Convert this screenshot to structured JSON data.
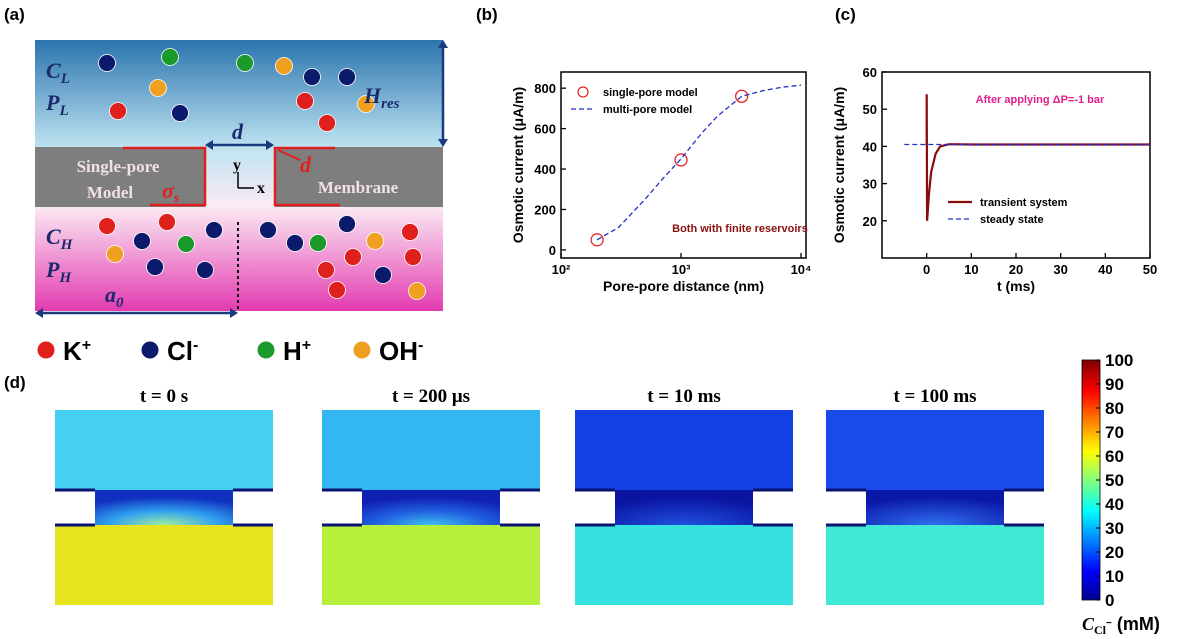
{
  "panel_labels": [
    "(a)",
    "(b)",
    "(c)",
    "(d)"
  ],
  "diagram": {
    "CL": [
      "C",
      "L"
    ],
    "PL": [
      "P",
      "L"
    ],
    "Hres": [
      "H",
      "res"
    ],
    "d_top": "d",
    "d_side": "d",
    "single_pore": [
      "Single-pore",
      "Model"
    ],
    "sigma": [
      "σ",
      "s"
    ],
    "axis_y": "y",
    "axis_x": "x",
    "membrane": "Membrane",
    "CH": [
      "C",
      "H"
    ],
    "PH": [
      "P",
      "H"
    ],
    "a0": [
      "a",
      "0"
    ],
    "ions": [
      [
        "K",
        "+"
      ],
      [
        "Cl",
        "-"
      ],
      [
        "H",
        "+"
      ],
      [
        "OH",
        "-"
      ]
    ]
  },
  "chart_data": [
    {
      "type": "line",
      "xscale": "log",
      "xlabel": "Pore-pore distance (nm)",
      "ylabel": "Osmotic current (μA/m)",
      "xlim": [
        100,
        11000
      ],
      "xticks": [
        {
          "value": 100,
          "label": "10²"
        },
        {
          "value": 1000,
          "label": "10³"
        },
        {
          "value": 10000,
          "label": "10⁴"
        }
      ],
      "ylim": [
        -40,
        880
      ],
      "yticks": [
        0,
        200,
        400,
        600,
        800
      ],
      "legend": "upper left",
      "annotation": "Both with finite reservoirs",
      "series": [
        {
          "name": "single-pore model",
          "color": "#e02828",
          "marker": "open-circle",
          "x": [
            200,
            1000,
            3200
          ],
          "values": [
            50,
            445,
            760
          ]
        },
        {
          "name": "multi-pore model",
          "color": "#2030c8",
          "dash": true,
          "x": [
            200,
            300,
            500,
            700,
            1000,
            1500,
            2000,
            3200,
            5000,
            7000,
            10000
          ],
          "values": [
            50,
            110,
            250,
            350,
            450,
            580,
            660,
            760,
            790,
            805,
            815
          ]
        }
      ]
    },
    {
      "type": "line",
      "xlabel": "t (ms)",
      "ylabel": "Osmotic current (μA/m)",
      "xlim": [
        -10,
        50
      ],
      "xticks": [
        0,
        10,
        20,
        30,
        40,
        50
      ],
      "ylim": [
        10,
        60
      ],
      "yticks": [
        20,
        30,
        40,
        50,
        60
      ],
      "legend": "lower right",
      "annotation": "After applying ΔP=-1 bar",
      "series": [
        {
          "name": "transient system",
          "color": "#8b0a0a",
          "x": [
            0,
            0,
            0.1,
            0.5,
            1,
            2,
            3,
            5,
            10,
            50
          ],
          "values": [
            40.5,
            54,
            20,
            27,
            33,
            38,
            40,
            40.6,
            40.5,
            40.5
          ]
        },
        {
          "name": "steady state",
          "color": "#2030c8",
          "dash": true,
          "x": [
            -5,
            50
          ],
          "values": [
            40.5,
            40.5
          ]
        }
      ]
    }
  ],
  "heatmaps": {
    "titles": [
      "t = 0 s",
      "t = 200 μs",
      "t = 10 ms",
      "t = 100 ms"
    ],
    "colorbar": {
      "lim": [
        0,
        100
      ],
      "ticks": [
        0,
        10,
        20,
        30,
        40,
        50,
        60,
        70,
        80,
        90,
        100
      ],
      "label": [
        "C",
        "Cl",
        "−",
        " (mM)"
      ]
    }
  }
}
